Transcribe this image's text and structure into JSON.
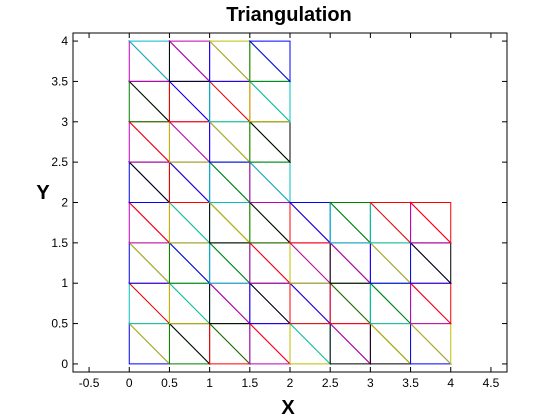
{
  "chart_data": {
    "type": "triangulation",
    "title": "Triangulation",
    "xlabel": "X",
    "ylabel": "Y",
    "xlim": [
      -0.7,
      4.7
    ],
    "ylim": [
      -0.1,
      4.1
    ],
    "xticks": [
      -0.5,
      0,
      0.5,
      1,
      1.5,
      2,
      2.5,
      3,
      3.5,
      4,
      4.5
    ],
    "xtick_labels": [
      "-0.5",
      "0",
      "0.5",
      "1",
      "1.5",
      "2",
      "2.5",
      "3",
      "3.5",
      "4",
      "4.5"
    ],
    "yticks": [
      0,
      0.5,
      1,
      1.5,
      2,
      2.5,
      3,
      3.5,
      4
    ],
    "ytick_labels": [
      "0",
      "0.5",
      "1",
      "1.5",
      "2",
      "2.5",
      "3",
      "3.5",
      "4"
    ],
    "grid": false,
    "palette": [
      "#0000ff",
      "#008000",
      "#ff0000",
      "#00bfbf",
      "#bf00bf",
      "#bfbf00",
      "#000000"
    ],
    "mesh_spacing": 0.5,
    "diagonal": "top-left to bottom-right",
    "regions": [
      {
        "x": [
          0,
          4
        ],
        "y": [
          0,
          2
        ]
      },
      {
        "x": [
          0,
          2
        ],
        "y": [
          2,
          4
        ]
      }
    ]
  }
}
